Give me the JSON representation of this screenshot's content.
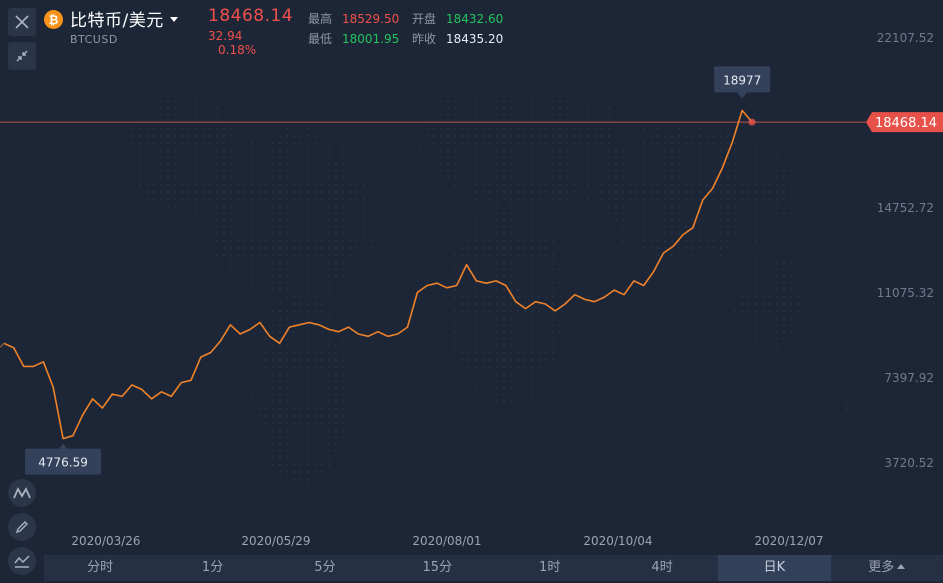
{
  "header": {
    "name": "比特币/美元",
    "code": "BTCUSD",
    "price": "18468.14",
    "change": "32.94",
    "change_pct": "0.18%",
    "high_label": "最高",
    "high_value": "18529.50",
    "low_label": "最低",
    "low_value": "18001.95",
    "open_label": "开盘",
    "open_value": "18432.60",
    "prev_close_label": "昨收",
    "prev_close_value": "18435.20"
  },
  "toolbar": {
    "close_icon": "close-icon",
    "collapse_icon": "collapse-icon",
    "indicator_icon": "indicator-icon",
    "draw_icon": "pencil-icon",
    "chart_type_icon": "chart-type-icon"
  },
  "tabs": [
    {
      "label": "分时",
      "active": false
    },
    {
      "label": "1分",
      "active": false
    },
    {
      "label": "5分",
      "active": false
    },
    {
      "label": "15分",
      "active": false
    },
    {
      "label": "1时",
      "active": false
    },
    {
      "label": "4时",
      "active": false
    },
    {
      "label": "日K",
      "active": true
    },
    {
      "label": "更多",
      "active": false
    }
  ],
  "colors": {
    "background": "#1c2637",
    "line": "#f0822a",
    "up": "#f0504a",
    "down": "#23c45d"
  },
  "chart_data": {
    "type": "line",
    "x_ticks": [
      "2020/03/26",
      "2020/05/29",
      "2020/08/01",
      "2020/10/04",
      "2020/12/07"
    ],
    "y_ticks": [
      "22107.52",
      "14752.72",
      "11075.32",
      "7397.92",
      "3720.52"
    ],
    "current_price_label": "18468.14",
    "max_label": "18977",
    "min_label": "4776.59",
    "values": [
      8900,
      8700,
      7900,
      7900,
      8100,
      7000,
      4776.59,
      4900,
      5800,
      6500,
      6100,
      6700,
      6600,
      7100,
      6900,
      6500,
      6800,
      6600,
      7200,
      7300,
      8300,
      8500,
      9000,
      9700,
      9300,
      9500,
      9800,
      9200,
      8900,
      9600,
      9700,
      9800,
      9700,
      9500,
      9400,
      9600,
      9300,
      9200,
      9400,
      9200,
      9300,
      9600,
      11100,
      11400,
      11500,
      11300,
      11400,
      12300,
      11600,
      11500,
      11600,
      11400,
      10700,
      10400,
      10700,
      10600,
      10300,
      10600,
      11000,
      10800,
      10700,
      10900,
      11200,
      11000,
      11600,
      11400,
      12000,
      12800,
      13100,
      13600,
      13900,
      15100,
      15600,
      16500,
      17600,
      18977,
      18468.14
    ]
  }
}
